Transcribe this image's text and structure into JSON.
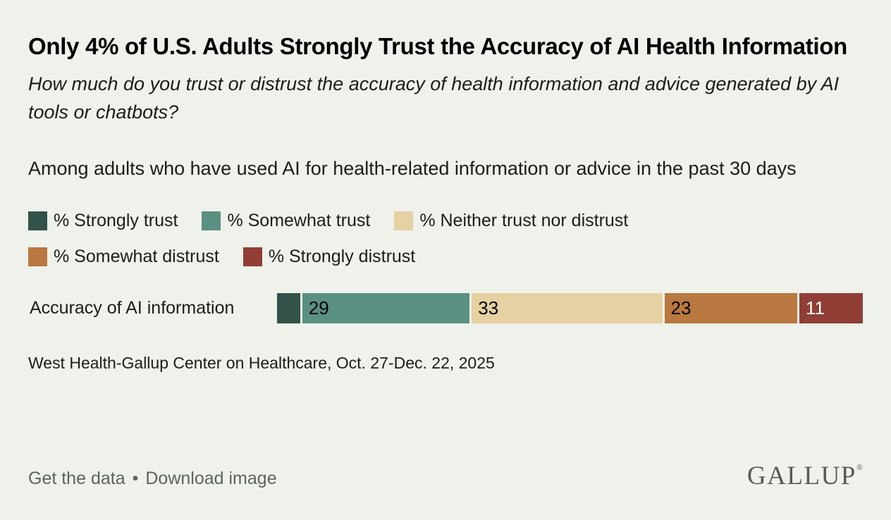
{
  "title": "Only 4% of U.S. Adults Strongly Trust the Accuracy of AI Health Information",
  "subtitle": "How much do you trust or distrust the accuracy of health information and advice generated by AI tools or chatbots?",
  "population_note": "Among adults who have used AI for health-related information or advice in the past 30 days",
  "colors": {
    "background": "#eef2ea",
    "title_text": "#000000",
    "body_text": "#1c1c1c",
    "footer_text": "#5d645f",
    "logo_text": "#585a57"
  },
  "chart_data": {
    "type": "bar",
    "subtype": "horizontal-stacked-100",
    "categories": [
      "Accuracy of AI information"
    ],
    "series": [
      {
        "name": "% Strongly trust",
        "values": [
          4
        ],
        "color": "#335249",
        "show_value": false
      },
      {
        "name": "% Somewhat trust",
        "values": [
          29
        ],
        "color": "#5a9082",
        "value_text_color": "#000000"
      },
      {
        "name": "% Neither trust nor distrust",
        "values": [
          33
        ],
        "color": "#e6d1a3",
        "value_text_color": "#000000"
      },
      {
        "name": "% Somewhat distrust",
        "values": [
          23
        ],
        "color": "#b9783f",
        "value_text_color": "#000000"
      },
      {
        "name": "% Strongly distrust",
        "values": [
          11
        ],
        "color": "#903e36",
        "value_text_color": "#ffffff"
      }
    ],
    "xlim": [
      0,
      100
    ],
    "legend_position": "top",
    "grid": false,
    "axis_labels_shown": false
  },
  "source": "West Health-Gallup Center on Healthcare, Oct. 27-Dec. 22, 2025",
  "footer": {
    "get_data_label": "Get the data",
    "separator": "•",
    "download_label": "Download image",
    "logo_text": "GALLUP",
    "logo_registered": "®"
  }
}
